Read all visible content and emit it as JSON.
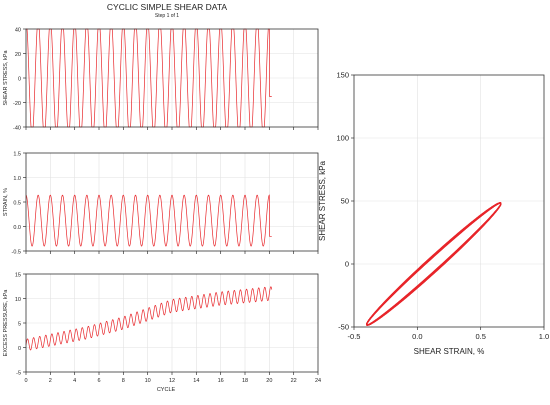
{
  "colors": {
    "trace": "#e8262a",
    "grid": "#e2e2e2",
    "frame": "#333333"
  },
  "page": {
    "title": "CYCLIC SIMPLE SHEAR DATA",
    "subtitle": "Step 1 of 1"
  },
  "chart_data": [
    {
      "id": "stress-time",
      "type": "line",
      "title": "",
      "xlabel": "",
      "ylabel": "SHEAR STRESS, kPa",
      "xlim": [
        0,
        24
      ],
      "ylim": [
        -40,
        40
      ],
      "yticks": [
        -40,
        -20,
        0,
        20,
        40
      ],
      "x_tick_labels_shown": false,
      "grid": true,
      "series": [
        {
          "x_start": 0,
          "x_end": 20.2,
          "cycles": 20,
          "amplitude": 47,
          "offset": 0,
          "phase_deg": 90,
          "clip": [
            -40,
            40
          ],
          "end_value": -15
        }
      ]
    },
    {
      "id": "strain-time",
      "type": "line",
      "title": "",
      "xlabel": "",
      "ylabel": "STRAIN, %",
      "xlim": [
        0,
        24
      ],
      "ylim": [
        -0.5,
        1.5
      ],
      "yticks": [
        -0.5,
        0.0,
        0.5,
        1.0,
        1.5
      ],
      "x_tick_labels_shown": false,
      "grid": true,
      "series": [
        {
          "x_start": 0,
          "x_end": 20.2,
          "cycles": 20,
          "amplitude": 0.52,
          "offset": 0.12,
          "phase_deg": 90,
          "end_value": -0.2
        }
      ]
    },
    {
      "id": "pore-pressure-time",
      "type": "line",
      "title": "",
      "xlabel": "CYCLE",
      "ylabel": "EXCESS PRESSURE, kPa",
      "xlim": [
        0,
        24
      ],
      "ylim": [
        -5,
        15
      ],
      "yticks": [
        -5,
        0,
        5,
        10,
        15
      ],
      "xticks": [
        0,
        2,
        4,
        6,
        8,
        10,
        12,
        14,
        16,
        18,
        20,
        22,
        24
      ],
      "grid": true,
      "series": [
        {
          "x_start": 0,
          "x_end": 20.2,
          "cycles": 40,
          "trend": [
            [
              0,
              0.5
            ],
            [
              5,
              3
            ],
            [
              8,
              5
            ],
            [
              12,
              8.5
            ],
            [
              16,
              10
            ],
            [
              20,
              11
            ]
          ],
          "ripple_start": 1.2,
          "ripple_end": 1.4
        }
      ]
    },
    {
      "id": "stress-strain-loop",
      "type": "line",
      "title": "",
      "xlabel": "SHEAR STRAIN, %",
      "ylabel": "SHEAR STRESS, kPa",
      "xlim": [
        -0.5,
        1.0
      ],
      "ylim": [
        -50,
        150
      ],
      "xticks": [
        -0.5,
        0.0,
        0.5,
        1.0
      ],
      "xtick_labels": [
        "-0.5",
        "0.0",
        "0.5",
        "1.0"
      ],
      "yticks": [
        -50,
        0,
        50,
        100,
        150
      ],
      "grid": true,
      "series": [
        {
          "loop_strain_range": [
            -0.4,
            0.66
          ],
          "loop_stress_range": [
            -48,
            48
          ],
          "loop_width": 6,
          "loops": 20
        }
      ]
    }
  ]
}
